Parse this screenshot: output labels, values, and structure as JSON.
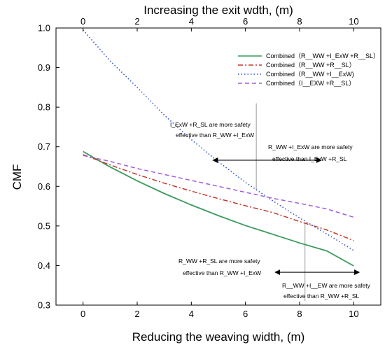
{
  "chart_data": {
    "type": "line",
    "title": "",
    "xlabel": "Reducing the weaving width, (m)",
    "x2label": "Increasing the exit wdth, (m)",
    "ylabel": "CMF",
    "xlim": [
      -1,
      11
    ],
    "ylim": [
      0.3,
      1.0
    ],
    "x_ticks": [
      0,
      2,
      4,
      6,
      8,
      10
    ],
    "x2_ticks": [
      0,
      2,
      4,
      6,
      8,
      10
    ],
    "y_ticks": [
      0.3,
      0.4,
      0.5,
      0.6,
      0.7,
      0.8,
      0.9,
      1.0
    ],
    "x_tick_labels": [
      "0",
      "2",
      "4",
      "6",
      "8",
      "10"
    ],
    "x2_tick_labels": [
      "0",
      "2",
      "4",
      "6",
      "8",
      "10"
    ],
    "y_tick_labels": [
      "0.3",
      "0.4",
      "0.5",
      "0.6",
      "0.7",
      "0.8",
      "0.9",
      "1.0"
    ],
    "grid": false,
    "legend_position": "top-right",
    "x": [
      0,
      1,
      2,
      3,
      4,
      5,
      6,
      7,
      8,
      9,
      10
    ],
    "series": [
      {
        "name": "Combined（R__WW +I_ExW +R__SL）",
        "color": "#3a9a5c",
        "dash": "solid",
        "values": [
          0.688,
          0.649,
          0.614,
          0.582,
          0.553,
          0.526,
          0.501,
          0.479,
          0.457,
          0.437,
          0.399
        ]
      },
      {
        "name": "Combined（R__WW +R__SL）",
        "color": "#c0392b",
        "dash": "dashdot",
        "values": [
          0.68,
          0.654,
          0.63,
          0.608,
          0.588,
          0.569,
          0.551,
          0.534,
          0.511,
          0.49,
          0.463
        ]
      },
      {
        "name": "Combined（R__WW +I__ExW)",
        "color": "#2a4fcf",
        "dash": "dot",
        "values": [
          0.995,
          0.917,
          0.85,
          0.78,
          0.718,
          0.662,
          0.61,
          0.564,
          0.52,
          0.48,
          0.438
        ]
      },
      {
        "name": "Combined（I__EXW +R__SL）",
        "color": "#a05de0",
        "dash": "dash",
        "values": [
          0.678,
          0.663,
          0.645,
          0.63,
          0.615,
          0.6,
          0.585,
          0.57,
          0.557,
          0.543,
          0.522
        ]
      }
    ],
    "annotations": [
      {
        "text": [
          "I_ExW +R_SL are more safety",
          "effective than R_WW +I_ExW"
        ]
      },
      {
        "text": [
          "R_WW +I_ExW  are more safety",
          "effective than I_ExW +R_SL"
        ]
      },
      {
        "text": [
          "R_WW +R_SL are more safety",
          "effective than R_WW +I_ExW"
        ]
      },
      {
        "text": [
          "R__WW +I__EW are more safety",
          "effective than R_WW +R_SL"
        ]
      }
    ],
    "crossover_x": [
      6.4,
      8.2
    ],
    "arrows": [
      {
        "from": 4.8,
        "to": 8.8,
        "y": 0.666
      },
      {
        "from": 7.1,
        "to": 10.2,
        "y": 0.383
      }
    ]
  }
}
